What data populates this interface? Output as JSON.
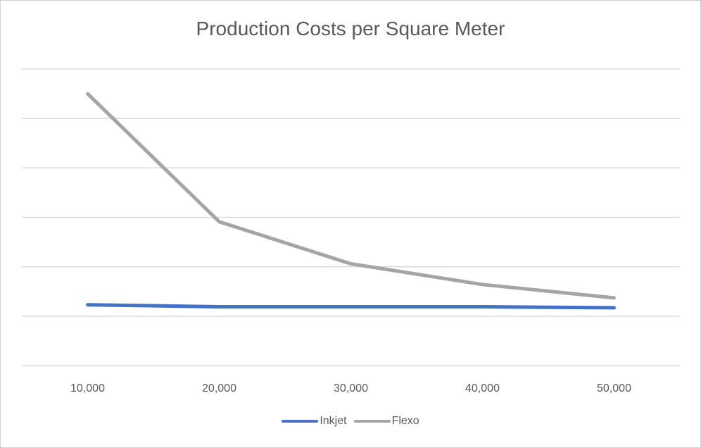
{
  "chart_data": {
    "type": "line",
    "title": "Production Costs per Square Meter",
    "xlabel": "",
    "ylabel": "",
    "categories": [
      "10,000",
      "20,000",
      "30,000",
      "40,000",
      "50,000"
    ],
    "ylim": [
      0,
      6
    ],
    "grid": true,
    "y_tick_labels_shown": false,
    "legend_placement": "bottom",
    "series": [
      {
        "name": "Inkjet",
        "color": "#4472C4",
        "values": [
          1.23,
          1.19,
          1.19,
          1.19,
          1.17
        ]
      },
      {
        "name": "Flexo",
        "color": "#A5A5A5",
        "values": [
          5.5,
          2.91,
          2.06,
          1.64,
          1.37
        ]
      }
    ]
  }
}
